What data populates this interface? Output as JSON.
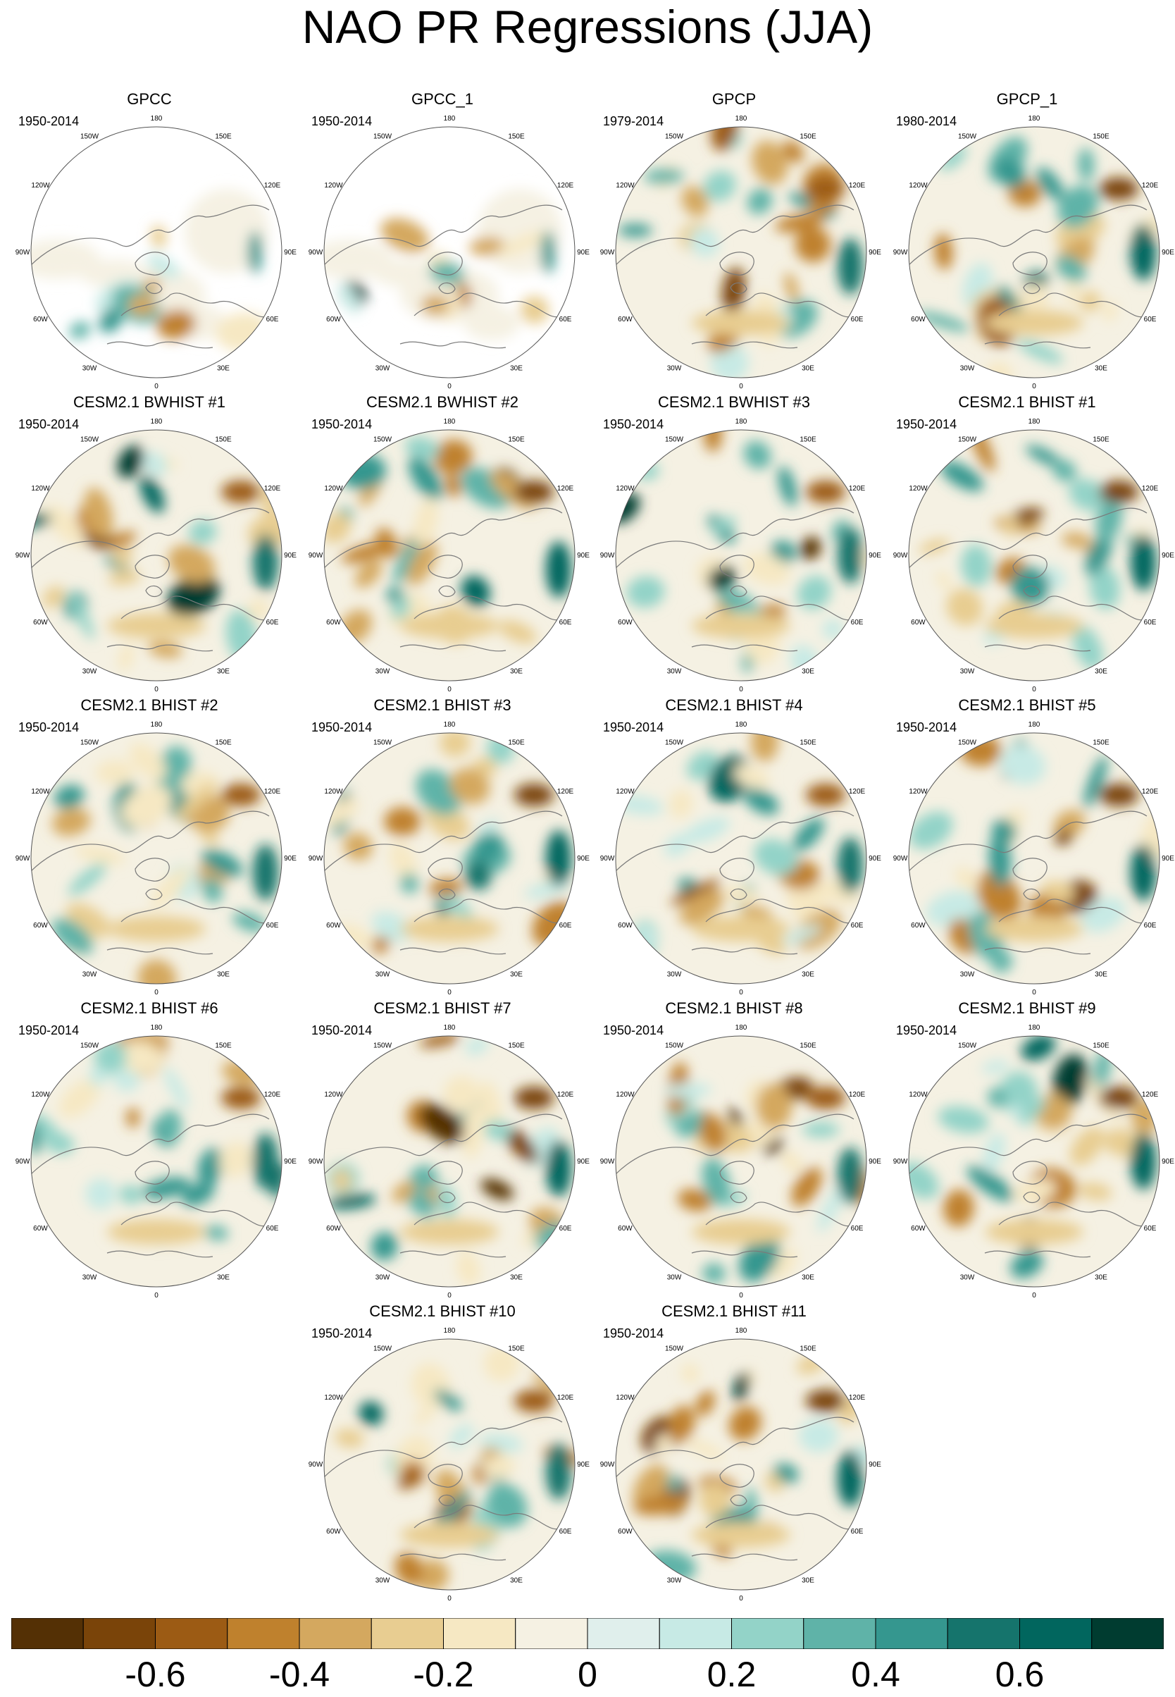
{
  "title": "NAO PR Regressions (JJA)",
  "panels": [
    {
      "name": "GPCC",
      "years": "1950-2014",
      "mask": "land"
    },
    {
      "name": "GPCC_1",
      "years": "1950-2014",
      "mask": "land"
    },
    {
      "name": "GPCP",
      "years": "1979-2014",
      "mask": "none"
    },
    {
      "name": "GPCP_1",
      "years": "1980-2014",
      "mask": "none"
    },
    {
      "name": "CESM2.1 BWHIST #1",
      "years": "1950-2014",
      "mask": "none"
    },
    {
      "name": "CESM2.1 BWHIST #2",
      "years": "1950-2014",
      "mask": "none"
    },
    {
      "name": "CESM2.1 BWHIST #3",
      "years": "1950-2014",
      "mask": "none"
    },
    {
      "name": "CESM2.1 BHIST #1",
      "years": "1950-2014",
      "mask": "none"
    },
    {
      "name": "CESM2.1 BHIST #2",
      "years": "1950-2014",
      "mask": "none"
    },
    {
      "name": "CESM2.1 BHIST #3",
      "years": "1950-2014",
      "mask": "none"
    },
    {
      "name": "CESM2.1 BHIST #4",
      "years": "1950-2014",
      "mask": "none"
    },
    {
      "name": "CESM2.1 BHIST #5",
      "years": "1950-2014",
      "mask": "none"
    },
    {
      "name": "CESM2.1 BHIST #6",
      "years": "1950-2014",
      "mask": "none"
    },
    {
      "name": "CESM2.1 BHIST #7",
      "years": "1950-2014",
      "mask": "none"
    },
    {
      "name": "CESM2.1 BHIST #8",
      "years": "1950-2014",
      "mask": "none"
    },
    {
      "name": "CESM2.1 BHIST #9",
      "years": "1950-2014",
      "mask": "none"
    },
    {
      "name": "CESM2.1 BHIST #10",
      "years": "1950-2014",
      "mask": "none"
    },
    {
      "name": "CESM2.1 BHIST #11",
      "years": "1950-2014",
      "mask": "none"
    }
  ],
  "longitude_labels": [
    "180",
    "150E",
    "120E",
    "90E",
    "60E",
    "30E",
    "0",
    "30W",
    "60W",
    "90W",
    "120W",
    "150W"
  ],
  "colorbar": {
    "colors": [
      "#543005",
      "#7a4409",
      "#9c5b14",
      "#bf812d",
      "#d4a85f",
      "#e8cd91",
      "#f6e8c3",
      "#f5f1e3",
      "#e0efec",
      "#c7eae5",
      "#93d3c8",
      "#5fb3a8",
      "#35978f",
      "#15746c",
      "#01665e",
      "#003c30"
    ],
    "tick_labels": [
      "-0.6",
      "-0.4",
      "-0.2",
      "0",
      "0.2",
      "0.4",
      "0.6"
    ],
    "tick_values": [
      -0.6,
      -0.4,
      -0.2,
      0,
      0.2,
      0.4,
      0.6
    ],
    "range": [
      -0.8,
      0.8
    ]
  },
  "colors": {
    "land_outline": "#7a7a7a",
    "background": "#ffffff"
  }
}
